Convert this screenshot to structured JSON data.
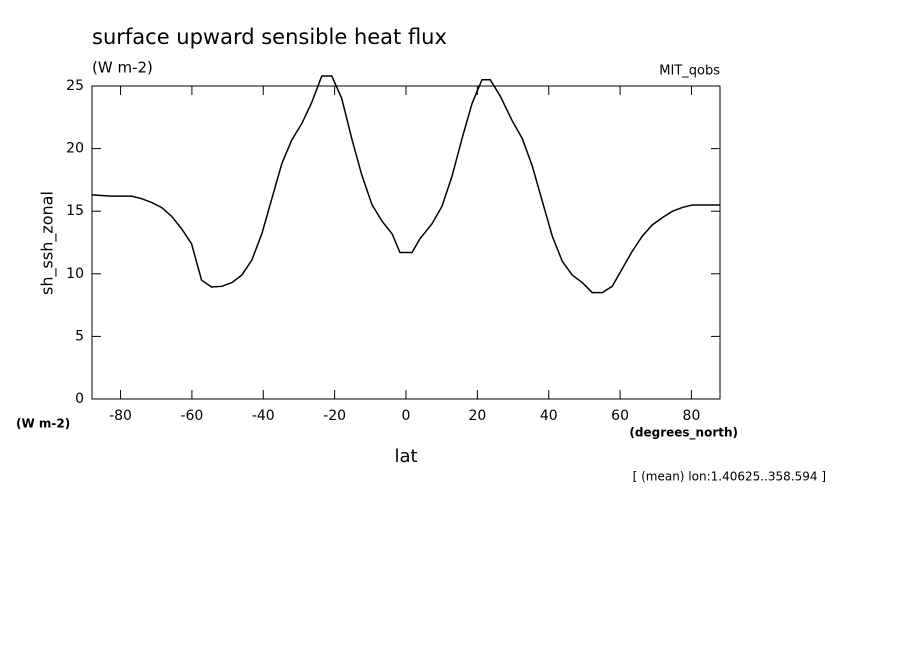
{
  "chart_data": {
    "type": "line",
    "title": "surface upward sensible heat flux",
    "subtitle": "(W m-2)",
    "source": "MIT_qobs",
    "y_label": "sh_ssh_zonal",
    "y_units": "(W m-2)",
    "x_label": "lat",
    "x_units": "(degrees_north)",
    "note": "[ (mean) lon:1.40625..358.594 ]",
    "x": [
      -88,
      -82.5,
      -76.9,
      -74.1,
      -71.3,
      -68.5,
      -65.7,
      -62.9,
      -60.1,
      -57.3,
      -54.5,
      -51.6,
      -48.8,
      -46,
      -43.2,
      -40.4,
      -37.6,
      -34.8,
      -32,
      -29.2,
      -26.4,
      -23.6,
      -20.8,
      -18,
      -15.2,
      -12.4,
      -9.5,
      -6.7,
      -3.9,
      -1.7,
      1.7,
      3.9,
      7.3,
      10.1,
      12.9,
      15.7,
      18.5,
      21.3,
      23.6,
      26.4,
      29.8,
      32.6,
      35.4,
      38.2,
      41,
      43.8,
      46.6,
      49.4,
      52.2,
      55,
      57.8,
      60.6,
      63.4,
      66.2,
      69,
      71.9,
      74.7,
      77.5,
      80.3,
      88
    ],
    "series": [
      {
        "color": "#000000",
        "values": [
          16.3,
          16.2,
          16.2,
          16.0,
          15.7,
          15.3,
          14.6,
          13.6,
          12.4,
          9.5,
          8.95,
          9.0,
          9.3,
          9.9,
          11.1,
          13.2,
          16.0,
          18.8,
          20.7,
          22.0,
          23.7,
          25.8,
          25.8,
          24.0,
          20.8,
          17.9,
          15.5,
          14.2,
          13.2,
          11.7,
          11.7,
          12.8,
          14.0,
          15.4,
          17.8,
          20.8,
          23.6,
          25.5,
          25.5,
          24.2,
          22.2,
          20.8,
          18.6,
          15.8,
          13.0,
          11.0,
          9.9,
          9.3,
          8.5,
          8.5,
          9.0,
          10.4,
          11.8,
          13.0,
          13.9,
          14.5,
          15.0,
          15.3,
          15.5,
          15.5
        ]
      }
    ],
    "xlim": [
      -88,
      88
    ],
    "xticks": [
      -80,
      -60,
      -40,
      -20,
      0,
      20,
      40,
      60,
      80
    ],
    "ylim": [
      0,
      25
    ],
    "yticks": [
      0,
      5,
      10,
      15,
      20,
      25
    ]
  }
}
